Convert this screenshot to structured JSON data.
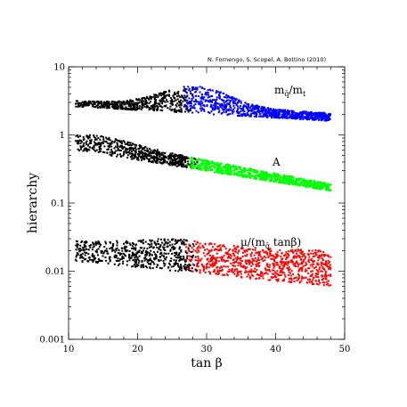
{
  "credit": "N. Fornengo, S. Scopel, A. Bottino  (2010)",
  "chart_data": {
    "type": "scatter",
    "xlabel": "tan β",
    "ylabel": "hierarchy",
    "xlim": [
      10,
      50
    ],
    "ylim": [
      0.001,
      10
    ],
    "yscale": "log",
    "grid": false,
    "xticks": [
      10,
      20,
      30,
      40,
      50
    ],
    "xtick_labels": [
      "10",
      "20",
      "30",
      "40",
      "50"
    ],
    "yticks": [
      0.001,
      0.01,
      0.1,
      1,
      10
    ],
    "ytick_labels": [
      "0.001",
      "0.01",
      "0.1",
      "1",
      "10"
    ],
    "annotations": [
      {
        "text": "m_q̄/m_t",
        "x": 40.5,
        "y": 3.3
      },
      {
        "text": "A",
        "x": 40,
        "y": 0.45
      },
      {
        "text": "μ/(m_q̄ tanβ)",
        "x": 36,
        "y": 0.026
      }
    ],
    "series": [
      {
        "label": "m_q̄/m_t",
        "color": "#000000",
        "x": [
          11,
          48
        ],
        "y_lower_at_xmin": 2.6,
        "y_upper_at_xmin": 3.2,
        "y_lower_at_xmax": 1.6,
        "y_upper_at_xmax": 2.1,
        "y_upper_peak": 5.2,
        "x_peak": 28,
        "highlight_color": "#0000ff",
        "highlight_x_from": 26.5
      },
      {
        "label": "A",
        "color": "#000000",
        "x": [
          11,
          48
        ],
        "y_lower_at_xmin": 0.6,
        "y_upper_at_xmin": 1.0,
        "y_lower_at_xmax": 0.15,
        "y_upper_at_xmax": 0.19,
        "y_upper_peak": 1.0,
        "x_peak": 11,
        "highlight_color": "#00ff00",
        "highlight_x_from": 27
      },
      {
        "label": "μ/(m_q̄ tanβ)",
        "color": "#000000",
        "x": [
          11,
          48
        ],
        "y_lower_at_xmin": 0.014,
        "y_upper_at_xmin": 0.028,
        "y_lower_at_xmax": 0.006,
        "y_upper_at_xmax": 0.02,
        "y_upper_peak": 0.03,
        "x_peak": 24,
        "highlight_color": "#ff0000",
        "highlight_x_from": 27
      }
    ]
  }
}
